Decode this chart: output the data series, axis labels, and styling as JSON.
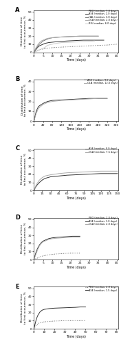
{
  "panels": [
    {
      "label": "A",
      "lines": [
        {
          "name": "PBO (median, 7.0 days)",
          "style": "dotted",
          "color": "#666666",
          "x": [
            0,
            1,
            2,
            3,
            5,
            7,
            9,
            12,
            16,
            20,
            25,
            30,
            35,
            40,
            45
          ],
          "y": [
            0,
            1,
            2,
            3,
            4,
            5,
            5.5,
            6,
            6.5,
            7,
            7.5,
            8,
            8.5,
            9,
            10
          ]
        },
        {
          "name": "ASE (median, 2.0 days)",
          "style": "solid",
          "color": "#333333",
          "x": [
            0,
            1,
            2,
            3,
            4,
            5,
            6,
            7,
            8,
            10,
            12,
            15,
            18,
            22,
            27,
            33,
            38
          ],
          "y": [
            0,
            3,
            6,
            8,
            9,
            10,
            11,
            11.5,
            12,
            12.5,
            13,
            13.5,
            14,
            14.5,
            15,
            15,
            15
          ]
        },
        {
          "name": "HAL (median, 3.0 days)",
          "style": "solid",
          "color": "#777777",
          "x": [
            0,
            1,
            2,
            3,
            4,
            5,
            6,
            7,
            8,
            10,
            12,
            15,
            20,
            25,
            30,
            35
          ],
          "y": [
            0,
            4,
            7,
            10,
            12,
            14,
            15,
            16,
            17,
            18,
            18.5,
            19,
            19.5,
            20,
            20,
            20
          ]
        },
        {
          "name": "OLA (median, 2.0 days)",
          "style": "solid",
          "color": "#aaaaaa",
          "x": [
            0,
            1,
            2,
            3,
            4,
            5,
            6,
            7,
            8,
            10,
            12,
            15,
            20,
            25,
            30,
            35
          ],
          "y": [
            0,
            5,
            9,
            12,
            14,
            15,
            16,
            17,
            17.5,
            18,
            18.5,
            19,
            19.5,
            20,
            20,
            20
          ]
        },
        {
          "name": "RIS (median, 6.0 days)",
          "style": "solid",
          "color": "#cccccc",
          "x": [
            0,
            1,
            2,
            3,
            4,
            5,
            6,
            7,
            8,
            10,
            12,
            15,
            20,
            25,
            30,
            33
          ],
          "y": [
            0,
            1,
            2,
            3,
            4,
            5,
            6,
            8,
            9,
            10,
            11,
            12,
            12.5,
            13,
            13.5,
            14
          ]
        }
      ],
      "xlim": [
        0,
        46
      ],
      "ylim": [
        0,
        52
      ],
      "xticks": [
        0,
        5,
        10,
        15,
        20,
        25,
        30,
        35,
        40,
        45
      ],
      "yticks": [
        0,
        10,
        20,
        30,
        40,
        50
      ],
      "xlabel": "Time (days)",
      "ylabel": "Distribution of time\nto first occurrence, %"
    },
    {
      "label": "B",
      "lines": [
        {
          "name": "ASE (median, 9.0 days)",
          "style": "solid",
          "color": "#333333",
          "x": [
            0,
            5,
            10,
            20,
            40,
            60,
            80,
            120,
            160,
            200,
            240,
            280,
            320
          ],
          "y": [
            0,
            5,
            10,
            15,
            18,
            20,
            21,
            21.5,
            22,
            22.5,
            23,
            23,
            23
          ]
        },
        {
          "name": "OLA (median, 12.0 days)",
          "style": "solid",
          "color": "#aaaaaa",
          "x": [
            0,
            5,
            10,
            20,
            40,
            60,
            80,
            120,
            160,
            200,
            240,
            280,
            320
          ],
          "y": [
            0,
            4,
            8,
            13,
            17,
            19,
            20,
            21,
            21.5,
            22,
            22.5,
            23,
            23
          ]
        }
      ],
      "xlim": [
        0,
        370
      ],
      "ylim": [
        0,
        42
      ],
      "xticks": [
        0,
        40,
        80,
        120,
        160,
        200,
        240,
        280,
        320,
        360
      ],
      "yticks": [
        0,
        10,
        20,
        30,
        40
      ],
      "xlabel": "Time (days)",
      "ylabel": "Distribution of time\nto first occurrence, %"
    },
    {
      "label": "C",
      "lines": [
        {
          "name": "ASE (median, 9.0 days)",
          "style": "solid",
          "color": "#333333",
          "x": [
            0,
            3,
            6,
            10,
            15,
            20,
            30,
            45,
            60,
            75,
            90,
            105,
            120,
            135,
            150
          ],
          "y": [
            0,
            4,
            7,
            10,
            13,
            15,
            17,
            18,
            19,
            19.5,
            20,
            20.5,
            21,
            21,
            21
          ]
        },
        {
          "name": "OLA (median, 7.5 days)",
          "style": "solid",
          "color": "#aaaaaa",
          "x": [
            0,
            3,
            6,
            10,
            15,
            20,
            30,
            45,
            60,
            75,
            90,
            105,
            120,
            135,
            150
          ],
          "y": [
            0,
            5,
            9,
            13,
            16,
            18,
            19.5,
            21,
            22,
            22.5,
            23,
            23.5,
            24,
            24,
            24
          ]
        }
      ],
      "xlim": [
        0,
        152
      ],
      "ylim": [
        0,
        52
      ],
      "xticks": [
        0,
        15,
        30,
        45,
        60,
        75,
        90,
        105,
        120,
        135,
        150
      ],
      "yticks": [
        0,
        10,
        20,
        30,
        40,
        50
      ],
      "xlabel": "Time (days)",
      "ylabel": "Distribution of time\nto first occurrence, %"
    },
    {
      "label": "D",
      "lines": [
        {
          "name": "PBO (median, 2.0 days)",
          "style": "dotted",
          "color": "#666666",
          "x": [
            0,
            1,
            2,
            3,
            4,
            5,
            6,
            7,
            8,
            10,
            12,
            15,
            20,
            25
          ],
          "y": [
            0,
            1,
            2,
            3,
            4,
            4.5,
            5,
            5.5,
            6,
            6.5,
            7,
            7.5,
            8,
            8
          ]
        },
        {
          "name": "ASE (median, 1.0 days)",
          "style": "solid",
          "color": "#333333",
          "x": [
            0,
            1,
            2,
            3,
            4,
            5,
            6,
            7,
            8,
            10,
            12,
            15,
            18,
            21,
            25
          ],
          "y": [
            0,
            8,
            14,
            18,
            21,
            23,
            24,
            25,
            26,
            27,
            27.5,
            28,
            28.5,
            29,
            29
          ]
        },
        {
          "name": "OLA (median, 2.0 days)",
          "style": "solid",
          "color": "#aaaaaa",
          "x": [
            0,
            1,
            2,
            3,
            4,
            5,
            6,
            7,
            8,
            10,
            12,
            15,
            18,
            21,
            25
          ],
          "y": [
            0,
            6,
            12,
            17,
            20,
            22,
            23,
            24,
            25,
            26,
            26.5,
            27,
            27.5,
            28,
            28
          ]
        }
      ],
      "xlim": [
        0,
        46
      ],
      "ylim": [
        0,
        52
      ],
      "xticks": [
        0,
        5,
        10,
        15,
        20,
        25,
        30,
        35,
        40,
        45
      ],
      "yticks": [
        0,
        10,
        20,
        30,
        40,
        50
      ],
      "xlabel": "Time (days)",
      "ylabel": "Distribution of time\nto first occurrence, %"
    },
    {
      "label": "E",
      "lines": [
        {
          "name": "PBO (median, 2.0 days)",
          "style": "dotted",
          "color": "#666666",
          "x": [
            0,
            1,
            2,
            3,
            4,
            5,
            6,
            8,
            10,
            15,
            20,
            30,
            40,
            50
          ],
          "y": [
            0,
            2,
            4,
            5,
            6,
            7,
            7.5,
            8,
            8.5,
            9,
            9.5,
            10,
            10,
            10
          ]
        },
        {
          "name": "ASE (median, 1.5 days)",
          "style": "solid",
          "color": "#333333",
          "x": [
            0,
            1,
            2,
            3,
            4,
            5,
            6,
            8,
            10,
            15,
            20,
            30,
            40,
            45,
            50
          ],
          "y": [
            0,
            5,
            10,
            14,
            17,
            19,
            21,
            23,
            24,
            25,
            25.5,
            26,
            26.5,
            27,
            27
          ]
        }
      ],
      "xlim": [
        0,
        82
      ],
      "ylim": [
        0,
        52
      ],
      "xticks": [
        0,
        10,
        20,
        30,
        40,
        50,
        60,
        70,
        80
      ],
      "yticks": [
        0,
        10,
        20,
        30,
        40,
        50
      ],
      "xlabel": "Time (days)",
      "ylabel": "Distribution of time\nto first occurrence, %"
    }
  ]
}
